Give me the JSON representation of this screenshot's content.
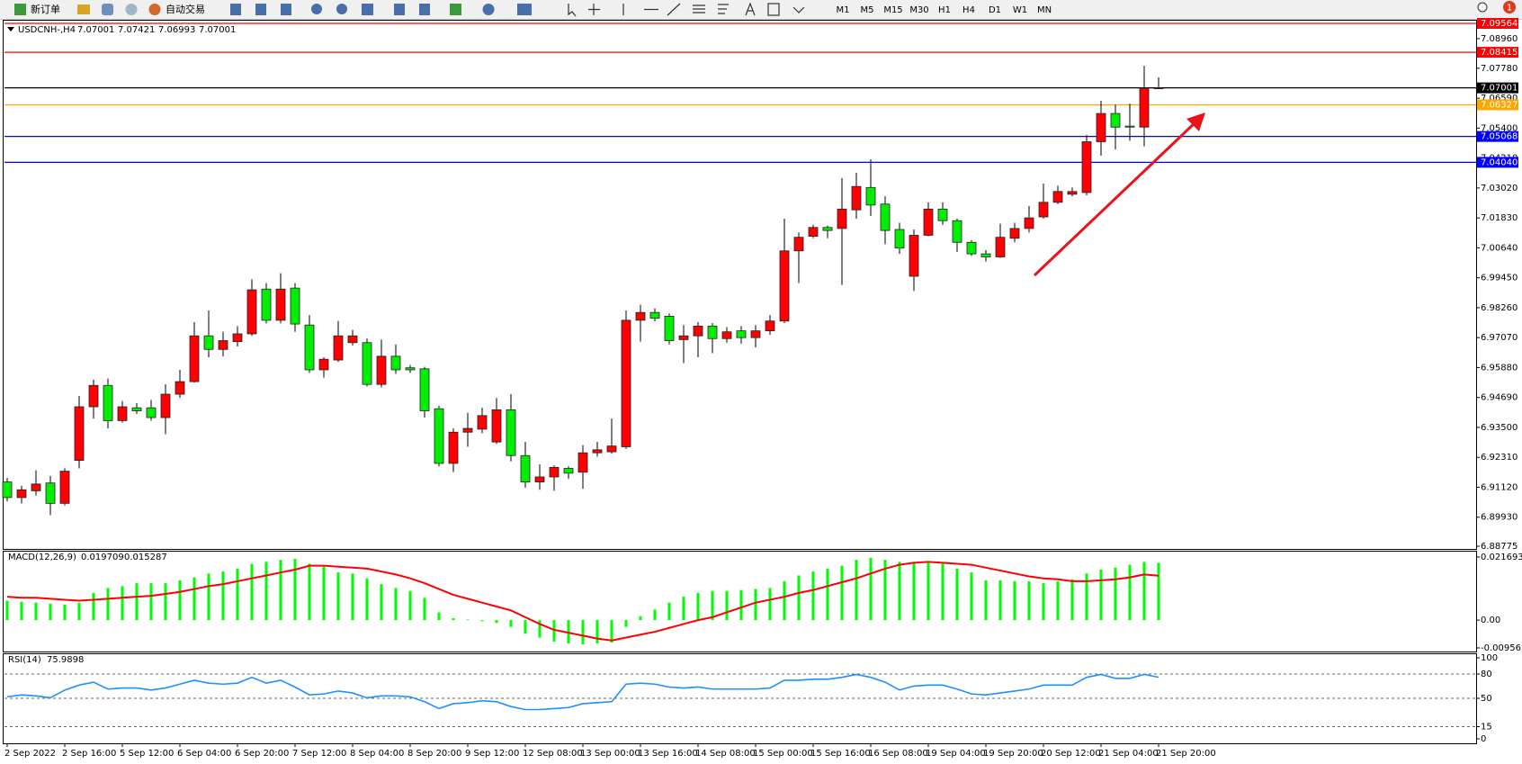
{
  "toolbar": {
    "new_order": "新订单",
    "auto_trading": "自动交易",
    "timeframes": [
      "M1",
      "M5",
      "M15",
      "M30",
      "H1",
      "H4",
      "D1",
      "W1",
      "MN"
    ],
    "badge": "1"
  },
  "chart_data": [
    {
      "type": "candlestick",
      "title": "USDCNH-,H4",
      "categories": [
        "2 Sep 2022",
        null,
        null,
        null,
        "2 Sep 16:00",
        null,
        null,
        null,
        "5 Sep 12:00",
        null,
        null,
        null,
        "6 Sep 04:00",
        null,
        null,
        null,
        "6 Sep 20:00",
        null,
        null,
        null,
        "7 Sep 12:00",
        null,
        null,
        null,
        "8 Sep 04:00",
        null,
        null,
        null,
        "8 Sep 20:00",
        null,
        null,
        null,
        "9 Sep 12:00",
        null,
        null,
        null,
        "12 Sep 08:00",
        null,
        null,
        null,
        "13 Sep 00:00",
        null,
        null,
        null,
        "13 Sep 16:00",
        null,
        null,
        null,
        "14 Sep 08:00",
        null,
        null,
        null,
        "15 Sep 00:00",
        null,
        null,
        null,
        "15 Sep 16:00",
        null,
        null,
        null,
        "16 Sep 08:00",
        null,
        null,
        null,
        "19 Sep 04:00",
        null,
        null,
        null,
        "19 Sep 20:00",
        null,
        null,
        null,
        "20 Sep 12:00",
        null,
        null,
        null,
        "21 Sep 04:00",
        null,
        null,
        null,
        "21 Sep 20:00"
      ],
      "open": [
        6.9133,
        6.9071,
        6.9098,
        6.9129,
        6.9048,
        6.9219,
        6.9432,
        6.9517,
        6.9377,
        6.9428,
        6.9428,
        6.9389,
        6.9482,
        6.9532,
        6.9714,
        6.966,
        6.9691,
        6.9722,
        6.99,
        6.9776,
        6.9904,
        6.9757,
        6.9579,
        6.9618,
        6.9687,
        6.9687,
        6.9521,
        6.9633,
        6.9587,
        6.9583,
        6.9424,
        6.9207,
        6.9331,
        6.9343,
        6.9292,
        6.942,
        6.9238,
        6.9133,
        6.9153,
        6.9187,
        6.9172,
        6.9249,
        6.9253,
        6.9273,
        6.9776,
        6.9807,
        6.9792,
        6.9699,
        6.9714,
        6.9753,
        6.9703,
        6.9734,
        6.9707,
        6.9734,
        6.9773,
        7.0052,
        7.011,
        7.0145,
        7.0141,
        7.0215,
        7.0304,
        7.0238,
        7.0137,
        6.9951,
        7.0114,
        7.0218,
        7.0172,
        7.0086,
        7.004,
        7.0028,
        7.0102,
        7.0141,
        7.0187,
        7.0245,
        7.0277,
        7.0284,
        7.0486,
        7.0598,
        7.0548,
        7.0544,
        7.07001
      ],
      "high": [
        6.9149,
        6.9118,
        6.918,
        6.9157,
        6.9187,
        6.9475,
        6.954,
        6.9544,
        6.9455,
        6.9447,
        6.9459,
        6.9521,
        6.9579,
        6.9769,
        6.9815,
        6.973,
        6.9753,
        6.9939,
        6.9924,
        6.9963,
        6.9924,
        6.9796,
        6.9629,
        6.9773,
        6.9738,
        6.9703,
        6.9699,
        6.968,
        6.9598,
        6.9591,
        6.9436,
        6.9346,
        6.9408,
        6.9428,
        6.9467,
        6.9482,
        6.9292,
        6.9203,
        6.9199,
        6.9195,
        6.928,
        6.9292,
        6.9385,
        6.9815,
        6.9838,
        6.9823,
        6.9803,
        6.9757,
        6.9769,
        6.9765,
        6.9749,
        6.9753,
        6.9757,
        6.9796,
        7.018,
        7.0125,
        7.0156,
        7.0152,
        7.0342,
        7.0362,
        7.0416,
        7.0269,
        7.0164,
        7.0137,
        7.0245,
        7.0245,
        7.018,
        7.0094,
        7.0055,
        7.016,
        7.0164,
        7.023,
        7.0319,
        7.0311,
        7.0304,
        7.0513,
        7.0649,
        7.0633,
        7.0637,
        7.0788,
        7.07421
      ],
      "low": [
        6.9056,
        6.9048,
        6.9079,
        6.9001,
        6.904,
        6.9187,
        6.9385,
        6.9346,
        6.9369,
        6.9404,
        6.9377,
        6.9323,
        6.9467,
        6.9528,
        6.9629,
        6.9633,
        6.9672,
        6.9714,
        6.9764,
        6.9764,
        6.973,
        6.9567,
        6.9548,
        6.961,
        6.9676,
        6.9513,
        6.9509,
        6.9563,
        6.9567,
        6.9389,
        6.9195,
        6.9172,
        6.9273,
        6.9327,
        6.9284,
        6.9215,
        6.911,
        6.9102,
        6.9098,
        6.9145,
        6.9106,
        6.9234,
        6.9245,
        6.9265,
        6.9691,
        6.9772,
        6.968,
        6.9606,
        6.9629,
        6.9645,
        6.9687,
        6.9683,
        6.9668,
        6.9718,
        6.9765,
        6.9924,
        7.0102,
        7.0102,
        6.9916,
        7.018,
        7.0191,
        7.0079,
        7.004,
        6.9893,
        7.011,
        7.0156,
        7.0048,
        7.0032,
        7.0009,
        7.0024,
        7.0086,
        7.0125,
        7.018,
        7.0238,
        7.0269,
        7.0273,
        7.0431,
        7.0455,
        7.049,
        7.0467,
        7.06993
      ],
      "close": [
        6.9071,
        6.9102,
        6.9125,
        6.9048,
        6.9176,
        6.9432,
        6.9517,
        6.9377,
        6.9432,
        6.9416,
        6.9389,
        6.9482,
        6.9532,
        6.9714,
        6.966,
        6.9695,
        6.9722,
        6.9897,
        6.9776,
        6.99,
        6.9761,
        6.9579,
        6.9621,
        6.9714,
        6.9714,
        6.9521,
        6.9633,
        6.9579,
        6.9579,
        6.9416,
        6.9207,
        6.9331,
        6.9346,
        6.9397,
        6.942,
        6.9238,
        6.9133,
        6.9153,
        6.9191,
        6.9168,
        6.9249,
        6.9261,
        6.9276,
        6.9776,
        6.9807,
        6.9784,
        6.9695,
        6.9714,
        6.9753,
        6.9703,
        6.973,
        6.9707,
        6.9734,
        6.9773,
        7.0052,
        7.0106,
        7.0145,
        7.0133,
        7.0218,
        7.0308,
        7.0234,
        7.0133,
        7.0063,
        7.0114,
        7.0218,
        7.0172,
        7.0086,
        7.004,
        7.0028,
        7.0106,
        7.0141,
        7.0183,
        7.0245,
        7.0288,
        7.0288,
        7.0486,
        7.0598,
        7.0544,
        7.0544,
        7.0699,
        7.07001
      ],
      "up_color": "#ff0000",
      "down_color": "#00ee00",
      "ylim": [
        6.88775,
        7.09564
      ],
      "yticks": [
        6.88775,
        {
          "value": 6.8993,
          "label": "6.89930"
        },
        {
          "value": 6.9112,
          "label": "6.91120"
        },
        {
          "value": 6.9231,
          "label": "6.92310"
        },
        {
          "value": 6.935,
          "label": "6.93500"
        },
        {
          "value": 6.9469,
          "label": "6.94690"
        },
        {
          "value": 6.9588,
          "label": "6.95880"
        },
        {
          "value": 6.9707,
          "label": "6.97070"
        },
        {
          "value": 6.9826,
          "label": "6.98260"
        },
        {
          "value": 6.9945,
          "label": "6.99450"
        },
        {
          "value": 7.0064,
          "label": "7.00640"
        },
        {
          "value": 7.0183,
          "label": "7.01830"
        },
        {
          "value": 7.0302,
          "label": "7.03020"
        },
        {
          "value": 7.0421,
          "label": "7.04210"
        },
        {
          "value": 7.054,
          "label": "7.05400"
        },
        {
          "value": 7.0659,
          "label": "7.06590"
        },
        {
          "value": 7.0778,
          "label": "7.07780"
        },
        {
          "value": 7.0896,
          "label": "7.08960"
        }
      ],
      "levels": [
        {
          "value": 7.09564,
          "color": "#ff0000"
        },
        {
          "value": 7.08415,
          "color": "#ff0000"
        },
        {
          "value": 7.07001,
          "color": "#000000"
        },
        {
          "value": 7.06327,
          "color": "#ffa500"
        },
        {
          "value": 7.05068,
          "color": "#0000ff"
        },
        {
          "value": 7.0404,
          "label": "7.04040",
          "color": "#0000ff"
        }
      ]
    },
    {
      "type": "macd",
      "title": "MACD(12,26,9)",
      "series": [
        {
          "color": "#00ff00",
          "values": [
            0.00668,
            0.00635,
            0.00601,
            0.00568,
            0.00534,
            0.00601,
            0.00935,
            0.01102,
            0.01169,
            0.01269,
            0.01269,
            0.01269,
            0.01369,
            0.0147,
            0.01603,
            0.0167,
            0.0177,
            0.01937,
            0.02004,
            0.02071,
            0.02104,
            0.01937,
            0.01837,
            0.01637,
            0.01603,
            0.01436,
            0.01236,
            0.01102,
            0.01002,
            0.00768,
            0.00267,
            0.00067,
            0.0002,
            -0.00033,
            -0.001,
            -0.00234,
            -0.00468,
            -0.00601,
            -0.00735,
            -0.00802,
            -0.00835,
            -0.00802,
            -0.00768,
            -0.00234,
            0.00134,
            0.00367,
            0.00601,
            0.00802,
            0.00935,
            0.01002,
            0.01002,
            0.01035,
            0.01069,
            0.01102,
            0.01336,
            0.01536,
            0.0167,
            0.0177,
            0.0187,
            0.02071,
            0.02138,
            0.02071,
            0.02004,
            0.02004,
            0.02004,
            0.01937,
            0.0177,
            0.01637,
            0.01369,
            0.01369,
            0.01336,
            0.01336,
            0.01269,
            0.01336,
            0.01403,
            0.01603,
            0.01737,
            0.01804,
            0.01904,
            0.02004,
            0.019709
          ]
        },
        {
          "color": "#ff0000",
          "values": [
            0.00802,
            0.00768,
            0.00768,
            0.00735,
            0.00701,
            0.00668,
            0.00701,
            0.00735,
            0.00768,
            0.00802,
            0.00835,
            0.00902,
            0.00969,
            0.01069,
            0.01169,
            0.01236,
            0.01336,
            0.01436,
            0.01536,
            0.01637,
            0.01737,
            0.0187,
            0.0187,
            0.01837,
            0.01804,
            0.0177,
            0.0167,
            0.0157,
            0.01436,
            0.01269,
            0.01069,
            0.00868,
            0.00735,
            0.00601,
            0.00468,
            0.00334,
            0.001,
            -0.00134,
            -0.00334,
            -0.00434,
            -0.00534,
            -0.00635,
            -0.00701,
            -0.00601,
            -0.00501,
            -0.00401,
            -0.00267,
            -0.00134,
            0,
            0.001,
            0.00267,
            0.00434,
            0.00601,
            0.00701,
            0.00802,
            0.00935,
            0.01035,
            0.01169,
            0.01303,
            0.01436,
            0.01603,
            0.0177,
            0.01904,
            0.01971,
            0.02004,
            0.01971,
            0.01937,
            0.01904,
            0.01804,
            0.01703,
            0.01603,
            0.01503,
            0.01436,
            0.01403,
            0.01336,
            0.01336,
            0.01369,
            0.01403,
            0.0147,
            0.0157,
            0.015287
          ]
        }
      ],
      "ylim": [
        -0.009563,
        0.021693
      ],
      "yticks": [
        0.021693,
        {
          "value": 0,
          "label": "0.00"
        },
        -0.009563
      ]
    },
    {
      "type": "line",
      "title": "RSI(14)",
      "color": "#1e90ff",
      "values": [
        51.8,
        54.2,
        53,
        50.6,
        60.2,
        66.3,
        69.9,
        61.4,
        62.7,
        62.7,
        60.2,
        62.7,
        67.5,
        72.3,
        68.7,
        67.5,
        68.7,
        75.9,
        68.7,
        72.3,
        63.9,
        54.2,
        55.4,
        59,
        56.6,
        50.6,
        53,
        53,
        51.8,
        45.8,
        37.3,
        43.4,
        44.6,
        47,
        45.8,
        39.8,
        36.1,
        36.1,
        37.3,
        38.6,
        43.4,
        44.6,
        45.8,
        67.5,
        68.7,
        67.5,
        63.9,
        62.7,
        63.9,
        61.4,
        61.4,
        61.4,
        61.4,
        62.7,
        72.3,
        72.3,
        73.5,
        73.5,
        75.9,
        79.5,
        75.9,
        69.9,
        60.2,
        65.1,
        66.3,
        66.3,
        61.4,
        55.4,
        54.2,
        56.6,
        59,
        61.4,
        66.3,
        66.3,
        66.3,
        75.9,
        79.5,
        74.7,
        74.7,
        79.5,
        75.9898
      ],
      "ylim": [
        0,
        100
      ],
      "yticks": [
        100,
        80,
        50,
        15,
        0
      ],
      "levels": [
        80,
        50,
        15
      ]
    }
  ]
}
